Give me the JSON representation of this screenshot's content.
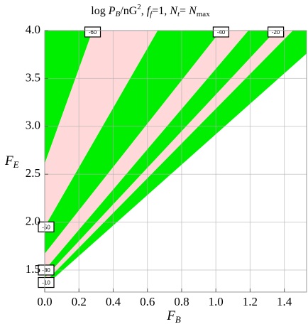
{
  "chart_data": {
    "type": "contour",
    "title": [
      "log ",
      "P",
      "B",
      "/nG",
      "2",
      ",  ",
      "f",
      "f",
      "=1,  ",
      "N",
      "t",
      "= ",
      "N",
      "max"
    ],
    "x_label": [
      "F",
      "B"
    ],
    "y_label": [
      "F",
      "E"
    ],
    "xlim": [
      0,
      1.53
    ],
    "ylim": [
      1.27,
      4.0
    ],
    "xticks": [
      {
        "value": 0,
        "label": "0.0"
      },
      0.2,
      0.4,
      0.6,
      0.8,
      {
        "value": 1,
        "label": "1.0"
      },
      1.2,
      1.4
    ],
    "yticks": [
      1.5,
      {
        "value": 2,
        "label": "2.0"
      },
      2.5,
      {
        "value": 3,
        "label": "3.0"
      },
      3.5,
      {
        "value": 4,
        "label": "4.0"
      }
    ],
    "grid": true,
    "band_colors": [
      "#00ee00",
      "#ffd9d9"
    ],
    "contours": [
      {
        "level": -60,
        "x": [
          0,
          0.28
        ],
        "y": [
          2.61,
          4.0
        ]
      },
      {
        "level": -50,
        "x": [
          0,
          0.66
        ],
        "y": [
          1.95,
          4.0
        ]
      },
      {
        "level": -40,
        "x": [
          0,
          1.03
        ],
        "y": [
          1.67,
          4.0
        ]
      },
      {
        "level": -30,
        "x": [
          0,
          1.19
        ],
        "y": [
          1.5,
          4.0
        ]
      },
      {
        "level": -20,
        "x": [
          0,
          1.35
        ],
        "y": [
          1.42,
          4.0
        ]
      },
      {
        "level": -10,
        "x": [
          0,
          1.45
        ],
        "y": [
          1.37,
          4.0
        ]
      }
    ],
    "domain_edge": {
      "x": [
        0,
        1.53
      ],
      "y": [
        1.33,
        3.76
      ]
    }
  }
}
